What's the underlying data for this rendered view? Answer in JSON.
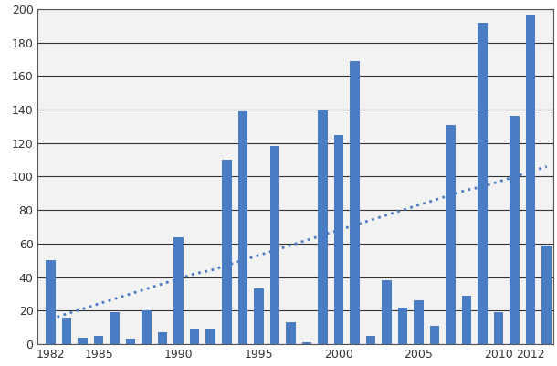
{
  "chart_data": {
    "type": "bar",
    "x": [
      1982,
      1983,
      1984,
      1985,
      1986,
      1987,
      1988,
      1989,
      1990,
      1991,
      1992,
      1993,
      1994,
      1995,
      1996,
      1997,
      1998,
      1999,
      2000,
      2001,
      2002,
      2003,
      2004,
      2005,
      2006,
      2007,
      2008,
      2009,
      2010,
      2011,
      2012,
      2013
    ],
    "series": [
      {
        "type": "bar",
        "color": "#4a7cc4",
        "values": [
          50,
          16,
          4,
          5,
          19,
          3,
          20,
          7,
          64,
          9,
          9,
          110,
          139,
          33,
          118,
          13,
          1,
          140,
          125,
          169,
          5,
          38,
          22,
          26,
          11,
          131,
          29,
          192,
          19,
          136,
          197,
          59
        ]
      },
      {
        "type": "line",
        "color": "#4a7cc4",
        "line_style": "dotted",
        "values": [
          15,
          18,
          21,
          24,
          27,
          30,
          33,
          36,
          39,
          42,
          44,
          47,
          50,
          53,
          56,
          59,
          62,
          65,
          68,
          71,
          74,
          77,
          80,
          83,
          86,
          89,
          92,
          94,
          97,
          100,
          103,
          106
        ]
      }
    ],
    "xlim": [
      1981.2,
      2013.4
    ],
    "xticks": [
      1982,
      1985,
      1990,
      1995,
      2000,
      2005,
      2010,
      2012
    ],
    "ylim": [
      0,
      200
    ],
    "yticks": [
      0,
      20,
      40,
      60,
      80,
      100,
      120,
      140,
      160,
      180,
      200
    ],
    "grid": true
  }
}
